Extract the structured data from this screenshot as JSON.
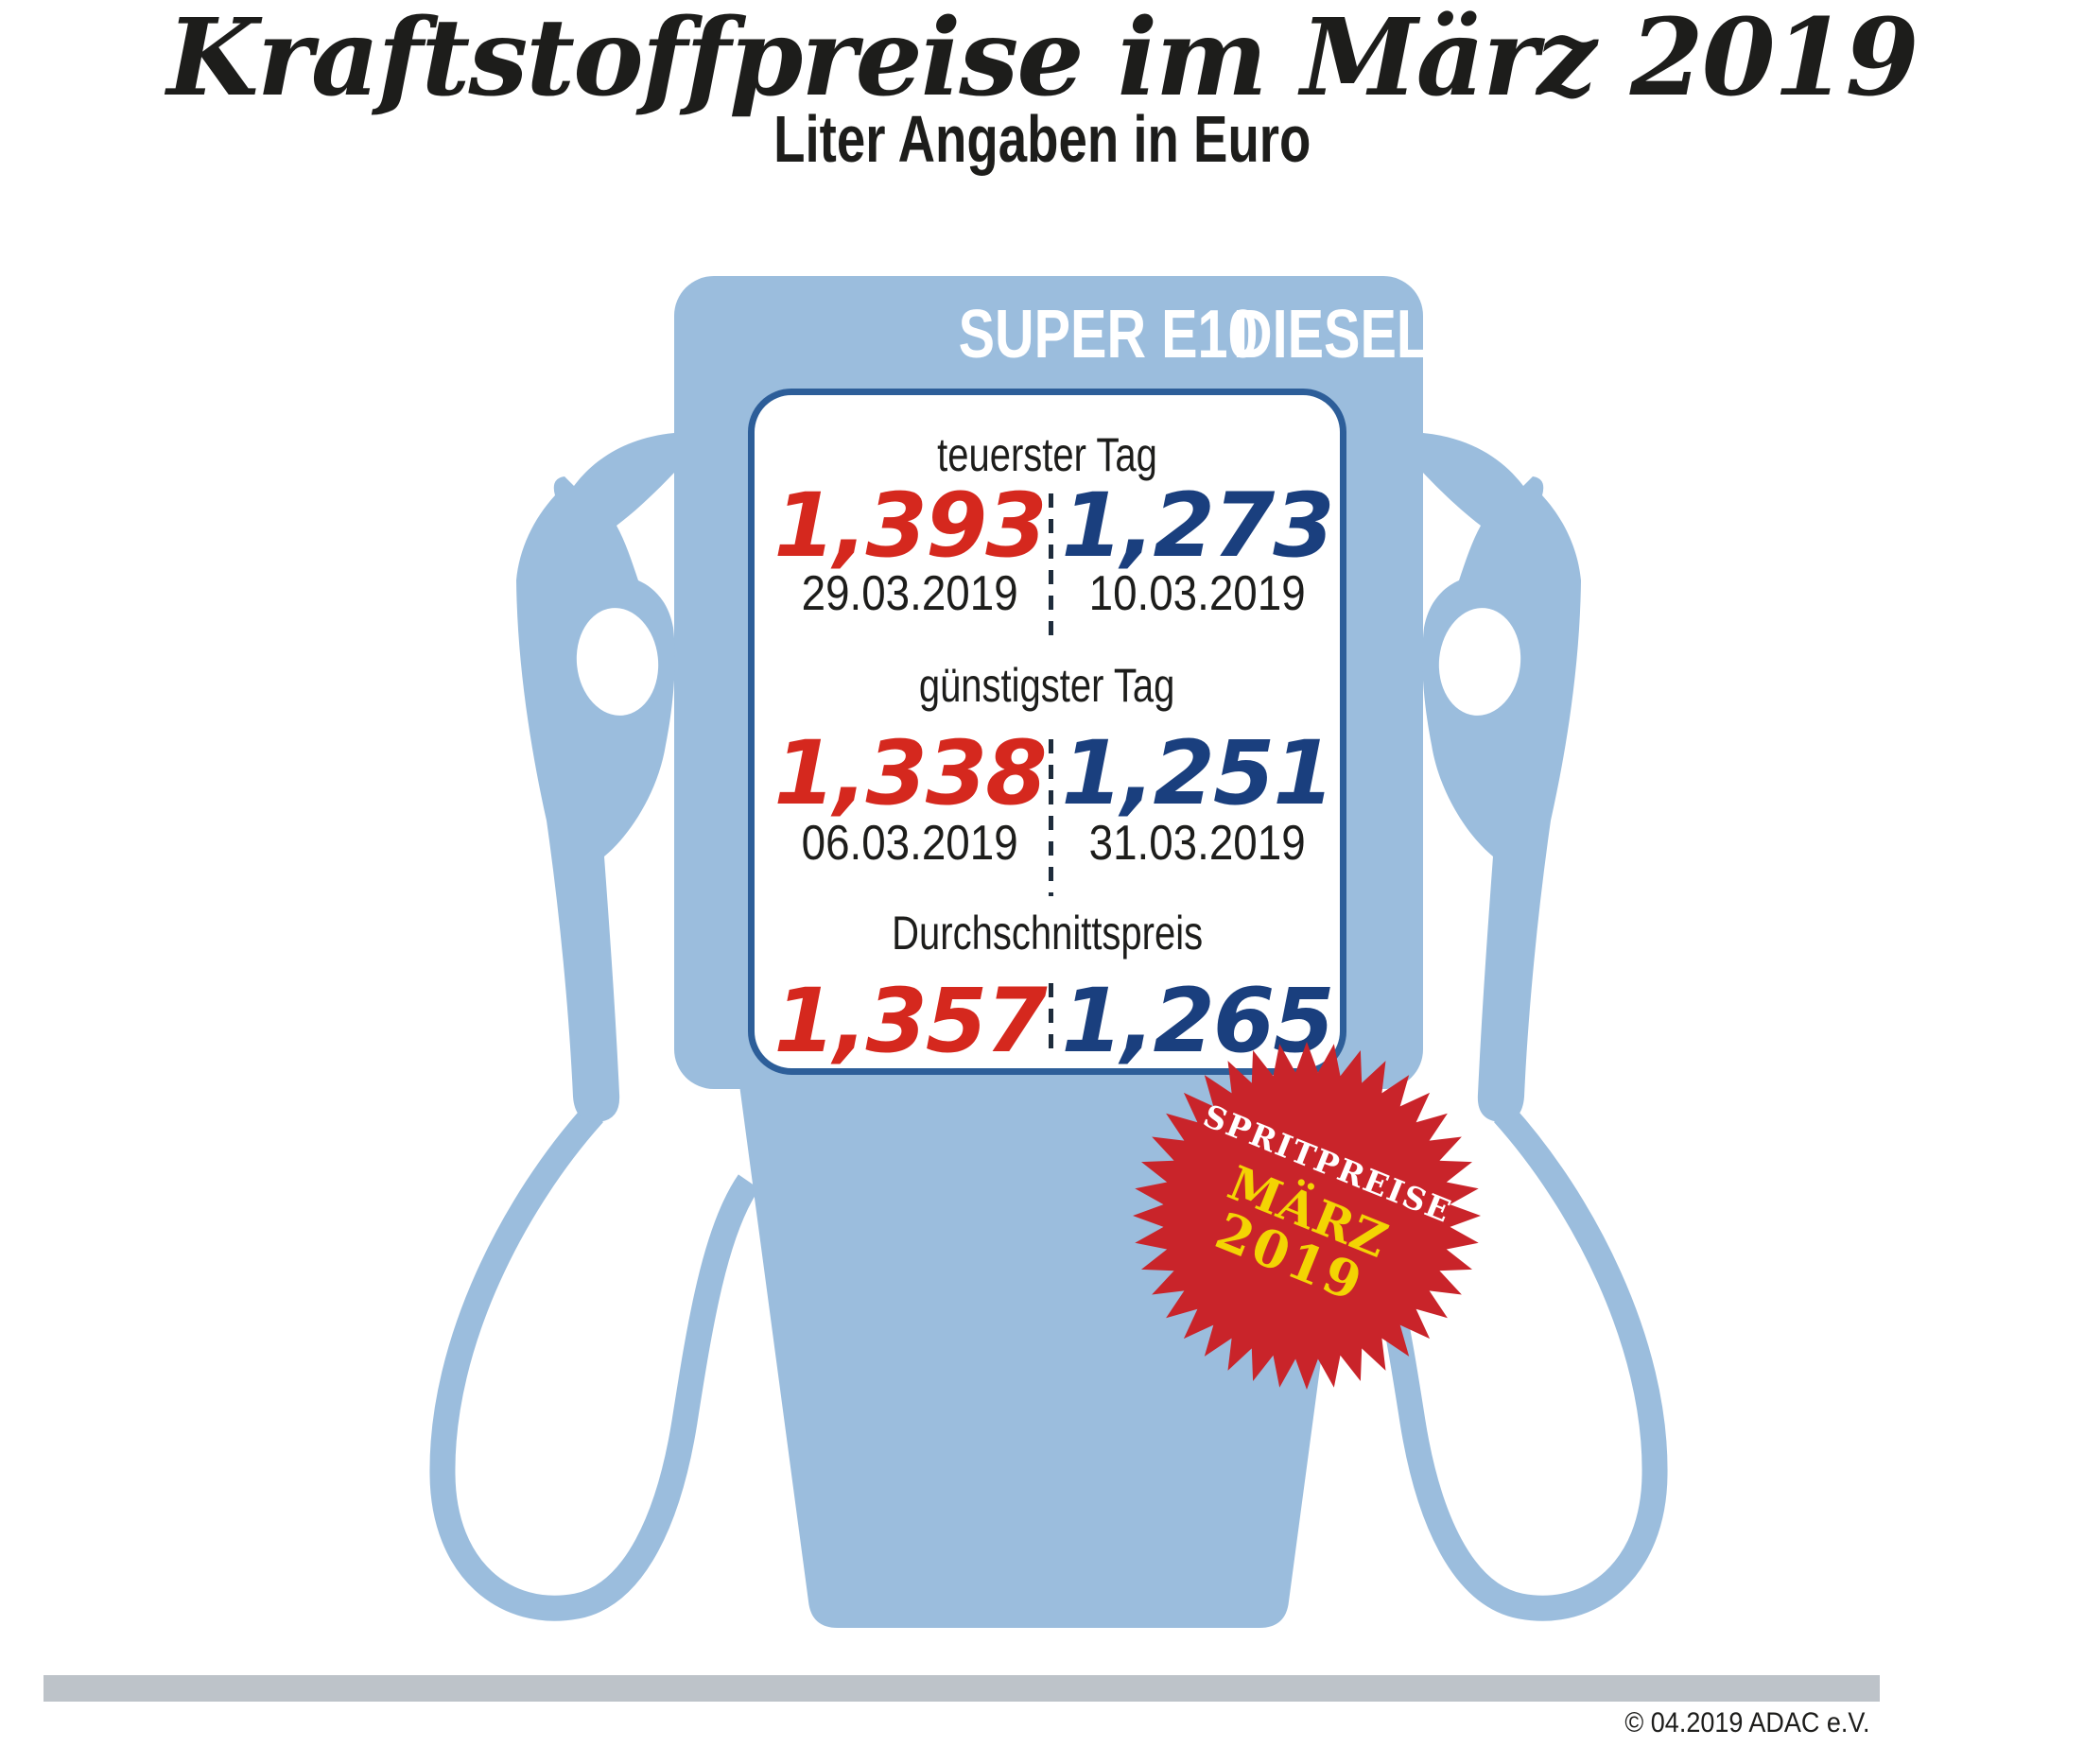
{
  "title": "Kraftstoffpreise im März 2019",
  "subtitle": "Liter Angaben in Euro",
  "pump": {
    "fuel_types": [
      "SUPER E10",
      "DIESEL"
    ],
    "rows": [
      {
        "label": "teuerster Tag",
        "super_e10": {
          "price": "1,393",
          "date": "29.03.2019"
        },
        "diesel": {
          "price": "1,273",
          "date": "10.03.2019"
        }
      },
      {
        "label": "günstigster Tag",
        "super_e10": {
          "price": "1,338",
          "date": "06.03.2019"
        },
        "diesel": {
          "price": "1,251",
          "date": "31.03.2019"
        }
      },
      {
        "label": "Durchschnittspreis",
        "super_e10": {
          "price": "1,357"
        },
        "diesel": {
          "price": "1,265"
        }
      }
    ]
  },
  "badge": {
    "line1": "SPRITPREISE",
    "line2": "MÄRZ",
    "line3": "2019"
  },
  "footer": {
    "copyright": "© 04.2019 ADAC e.V."
  },
  "colors": {
    "pump_blue": "#9bbddd",
    "panel_border_blue": "#2d5e99",
    "super_e10_red": "#d5281e",
    "diesel_blue": "#1a3f7e",
    "badge_red": "#c9242a",
    "badge_yellow": "#f3d403",
    "footer_bar_gray": "#bdc3c9",
    "divider_navy": "#1e2c3c",
    "text_black": "#1d1d1b"
  }
}
